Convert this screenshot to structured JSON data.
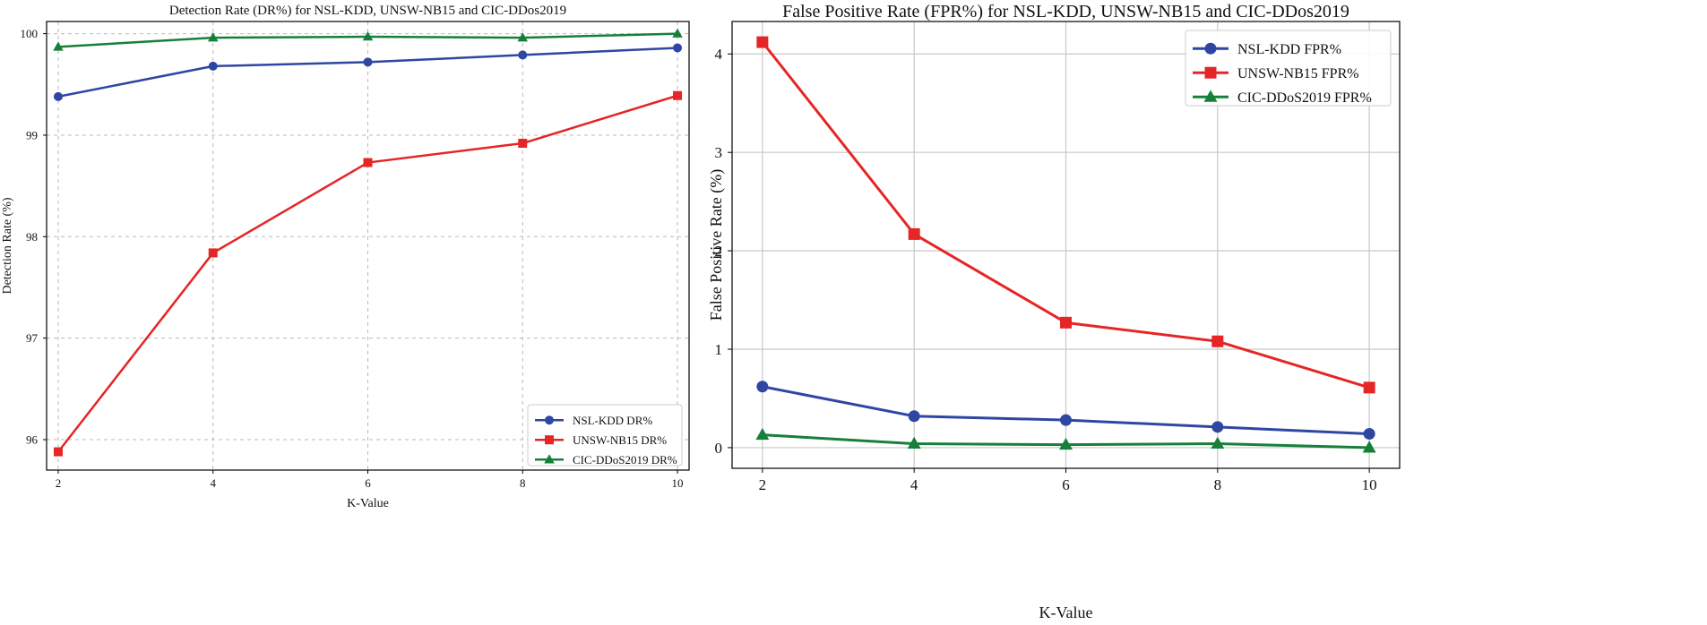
{
  "chart_data": [
    {
      "type": "line",
      "title": "Detection Rate (DR%) for NSL-KDD, UNSW-NB15 and CIC-DDos2019",
      "xlabel": "K-Value",
      "ylabel": "Detection Rate (%)",
      "x": [
        2,
        4,
        6,
        8,
        10
      ],
      "xlim": [
        1.85,
        10.15
      ],
      "ylim": [
        95.7,
        100.12
      ],
      "xticks": [
        "2",
        "4",
        "6",
        "8",
        "10"
      ],
      "yticks": [
        "96",
        "97",
        "98",
        "99",
        "100"
      ],
      "ytick_values": [
        96,
        97,
        98,
        99,
        100
      ],
      "grid": "dashed",
      "legend_position": "lower-right",
      "series": [
        {
          "name": "NSL-KDD DR%",
          "color": "#2f46a3",
          "marker": "circle",
          "values": [
            99.38,
            99.68,
            99.72,
            99.79,
            99.86
          ]
        },
        {
          "name": "UNSW-NB15 DR%",
          "color": "#e52526",
          "marker": "square",
          "values": [
            95.88,
            97.84,
            98.73,
            98.92,
            99.39
          ]
        },
        {
          "name": "CIC-DDoS2019 DR%",
          "color": "#16803a",
          "marker": "triangle",
          "values": [
            99.87,
            99.96,
            99.97,
            99.96,
            100.0
          ]
        }
      ]
    },
    {
      "type": "line",
      "title": "False Positive Rate (FPR%) for NSL-KDD, UNSW-NB15 and CIC-DDos2019",
      "xlabel": "K-Value",
      "ylabel": "False Positive Rate (%)",
      "x": [
        2,
        4,
        6,
        8,
        10
      ],
      "xlim": [
        1.6,
        10.4
      ],
      "ylim": [
        -0.21,
        4.33
      ],
      "xticks": [
        "2",
        "4",
        "6",
        "8",
        "10"
      ],
      "yticks": [
        "0",
        "1",
        "2",
        "3",
        "4"
      ],
      "ytick_values": [
        0,
        1,
        2,
        3,
        4
      ],
      "grid": "solid",
      "legend_position": "upper-right",
      "series": [
        {
          "name": "NSL-KDD FPR%",
          "color": "#2f46a3",
          "marker": "circle",
          "values": [
            0.62,
            0.32,
            0.28,
            0.21,
            0.14
          ]
        },
        {
          "name": "UNSW-NB15 FPR%",
          "color": "#e52526",
          "marker": "square",
          "values": [
            4.12,
            2.17,
            1.27,
            1.08,
            0.61
          ]
        },
        {
          "name": "CIC-DDoS2019 FPR%",
          "color": "#16803a",
          "marker": "triangle",
          "values": [
            0.13,
            0.04,
            0.03,
            0.04,
            0.0
          ]
        }
      ]
    }
  ]
}
